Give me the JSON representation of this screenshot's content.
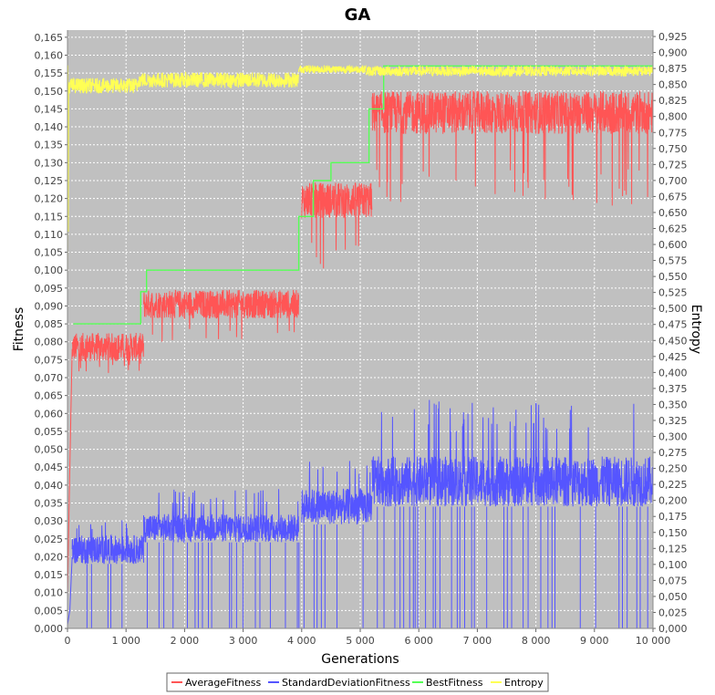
{
  "chart_data": {
    "type": "line",
    "title": "GA",
    "xlabel": "Generations",
    "ylabel": "Fitness",
    "y2label": "Entropy",
    "xlim": [
      0,
      10000
    ],
    "ylim": [
      0,
      0.167
    ],
    "y2lim": [
      0,
      0.935
    ],
    "x_ticks": [
      "0",
      "1 000",
      "2 000",
      "3 000",
      "4 000",
      "5 000",
      "6 000",
      "7 000",
      "8 000",
      "9 000",
      "10 000"
    ],
    "y_ticks": [
      "0,000",
      "0,005",
      "0,010",
      "0,015",
      "0,020",
      "0,025",
      "0,030",
      "0,035",
      "0,040",
      "0,045",
      "0,050",
      "0,055",
      "0,060",
      "0,065",
      "0,070",
      "0,075",
      "0,080",
      "0,085",
      "0,090",
      "0,095",
      "0,100",
      "0,105",
      "0,110",
      "0,115",
      "0,120",
      "0,125",
      "0,130",
      "0,135",
      "0,140",
      "0,145",
      "0,150",
      "0,155",
      "0,160",
      "0,165"
    ],
    "y2_ticks": [
      "0,000",
      "0,025",
      "0,050",
      "0,075",
      "0,100",
      "0,125",
      "0,150",
      "0,175",
      "0,200",
      "0,225",
      "0,250",
      "0,275",
      "0,300",
      "0,325",
      "0,350",
      "0,375",
      "0,400",
      "0,425",
      "0,450",
      "0,475",
      "0,500",
      "0,525",
      "0,550",
      "0,575",
      "0,600",
      "0,625",
      "0,650",
      "0,675",
      "0,700",
      "0,725",
      "0,750",
      "0,775",
      "0,800",
      "0,825",
      "0,850",
      "0,875",
      "0,900",
      "0,925"
    ],
    "grid": true,
    "legend_position": "bottom",
    "background": "#c0c0c0",
    "series": [
      {
        "name": "AverageFitness",
        "axis": "left",
        "color": "#ff5555",
        "segments": [
          {
            "x": [
              80,
              1300
            ],
            "center": 0.0785,
            "spread": 0.004,
            "dip": 0.071
          },
          {
            "x": [
              1300,
              3950
            ],
            "center": 0.0905,
            "spread": 0.004,
            "dip": 0.08
          },
          {
            "x": [
              4000,
              5200
            ],
            "center": 0.1195,
            "spread": 0.005,
            "dip": 0.1
          },
          {
            "x": [
              5200,
              10000
            ],
            "center": 0.144,
            "spread": 0.006,
            "dip": 0.118
          }
        ]
      },
      {
        "name": "StandardDeviationFitness",
        "axis": "left",
        "color": "#5555ff",
        "segments": [
          {
            "x": [
              80,
              1300
            ],
            "center": 0.022,
            "spread": 0.004,
            "peak": 0.031
          },
          {
            "x": [
              1300,
              3950
            ],
            "center": 0.028,
            "spread": 0.004,
            "peak": 0.039
          },
          {
            "x": [
              4000,
              5200
            ],
            "center": 0.034,
            "spread": 0.005,
            "peak": 0.047
          },
          {
            "x": [
              5200,
              10000
            ],
            "center": 0.041,
            "spread": 0.007,
            "peak": 0.064
          }
        ]
      },
      {
        "name": "BestFitness",
        "axis": "left",
        "color": "#55ff55",
        "steps": [
          {
            "x": [
              100,
              1250
            ],
            "y": 0.085
          },
          {
            "x": [
              1250,
              1350
            ],
            "y": 0.094
          },
          {
            "x": [
              1350,
              3950
            ],
            "y": 0.1
          },
          {
            "x": [
              3950,
              4200
            ],
            "y": 0.115
          },
          {
            "x": [
              4200,
              4500
            ],
            "y": 0.125
          },
          {
            "x": [
              4500,
              5150
            ],
            "y": 0.13
          },
          {
            "x": [
              5150,
              5400
            ],
            "y": 0.145
          },
          {
            "x": [
              5400,
              10000
            ],
            "y": 0.157
          }
        ]
      },
      {
        "name": "Entropy",
        "axis": "right",
        "color": "#ffff55",
        "segments": [
          {
            "x": [
              20,
              1200
            ],
            "center": 0.848,
            "spread": 0.012
          },
          {
            "x": [
              1200,
              3950
            ],
            "center": 0.857,
            "spread": 0.012
          },
          {
            "x": [
              3950,
              5100
            ],
            "center": 0.874,
            "spread": 0.006
          },
          {
            "x": [
              5100,
              10000
            ],
            "center": 0.871,
            "spread": 0.008
          }
        ]
      }
    ]
  }
}
